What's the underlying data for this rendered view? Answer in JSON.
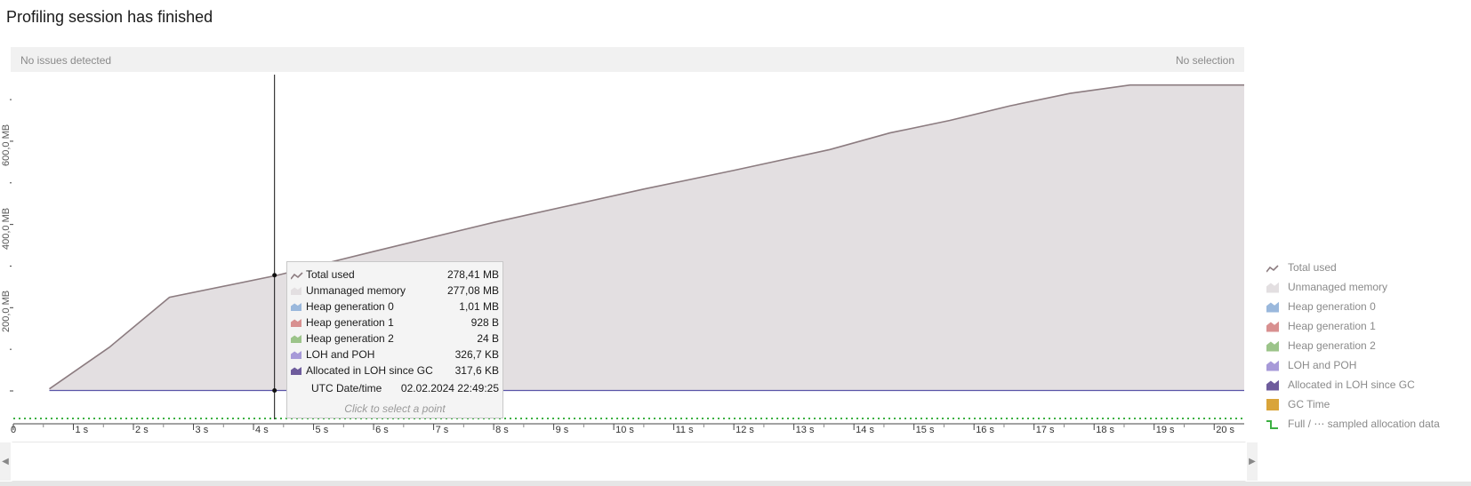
{
  "header": {
    "title": "Profiling session has finished"
  },
  "issues_bar": {
    "left_text": "No issues detected",
    "right_text": "No selection"
  },
  "colors": {
    "total_used": "#8c7c80",
    "unmanaged": "#e3dfe1",
    "heap0": "#9ab8dc",
    "heap1": "#d89090",
    "heap2": "#9cc48a",
    "loh_poh": "#a79ad8",
    "loh_since_gc": "#6e5c9c",
    "gc_time": "#d9a43a",
    "sampled": "#3cb043"
  },
  "chart_data": {
    "type": "area",
    "x_unit": "s",
    "x_ticks": [
      "0",
      "1 s",
      "2 s",
      "3 s",
      "4 s",
      "5 s",
      "6 s",
      "7 s",
      "8 s",
      "9 s",
      "10 s",
      "11 s",
      "12 s",
      "13 s",
      "14 s",
      "15 s",
      "16 s",
      "17 s",
      "18 s",
      "19 s",
      "20 s"
    ],
    "y_ticks": [
      "200,0 MB",
      "400,0 MB",
      "600,0 MB"
    ],
    "xlim": [
      0,
      20.5
    ],
    "ylim": [
      0,
      760
    ],
    "series": [
      {
        "name": "Total used",
        "x": [
          0.6,
          1.6,
          2.6,
          4.4,
          6.0,
          8.0,
          10.5,
          12.0,
          13.6,
          14.6,
          15.6,
          16.6,
          17.6,
          18.6,
          20.5
        ],
        "y": [
          5,
          105,
          225,
          278,
          335,
          405,
          485,
          530,
          580,
          620,
          650,
          685,
          715,
          735,
          735
        ]
      }
    ],
    "cursor_x": 4.35,
    "legend": {
      "position": "right",
      "items": [
        {
          "label": "Total used",
          "color_key": "total_used",
          "icon": "line"
        },
        {
          "label": "Unmanaged memory",
          "color_key": "unmanaged",
          "icon": "area"
        },
        {
          "label": "Heap generation 0",
          "color_key": "heap0",
          "icon": "area"
        },
        {
          "label": "Heap generation 1",
          "color_key": "heap1",
          "icon": "area"
        },
        {
          "label": "Heap generation 2",
          "color_key": "heap2",
          "icon": "area"
        },
        {
          "label": "LOH and POH",
          "color_key": "loh_poh",
          "icon": "area"
        },
        {
          "label": "Allocated in LOH since GC",
          "color_key": "loh_since_gc",
          "icon": "area"
        },
        {
          "label": "GC Time",
          "color_key": "gc_time",
          "icon": "square"
        },
        {
          "label": "Full / ⋯ sampled allocation data",
          "color_key": "sampled",
          "icon": "step"
        }
      ]
    }
  },
  "tooltip": {
    "rows": [
      {
        "label": "Total used",
        "value": "278,41 MB",
        "color_key": "total_used",
        "icon": "line"
      },
      {
        "label": "Unmanaged memory",
        "value": "277,08 MB",
        "color_key": "unmanaged",
        "icon": "area"
      },
      {
        "label": "Heap generation 0",
        "value": "1,01 MB",
        "color_key": "heap0",
        "icon": "area"
      },
      {
        "label": "Heap generation 1",
        "value": "928 B",
        "color_key": "heap1",
        "icon": "area"
      },
      {
        "label": "Heap generation 2",
        "value": "24 B",
        "color_key": "heap2",
        "icon": "area"
      },
      {
        "label": "LOH and POH",
        "value": "326,7 KB",
        "color_key": "loh_poh",
        "icon": "area"
      },
      {
        "label": "Allocated in LOH since GC",
        "value": "317,6 KB",
        "color_key": "loh_since_gc",
        "icon": "area"
      },
      {
        "label": "UTC Date/time",
        "value": "02.02.2024 22:49:25",
        "color_key": "",
        "icon": "none"
      }
    ],
    "hint": "Click to select a point"
  },
  "overview": {
    "left_arrow": "◀",
    "right_arrow": "▶"
  }
}
